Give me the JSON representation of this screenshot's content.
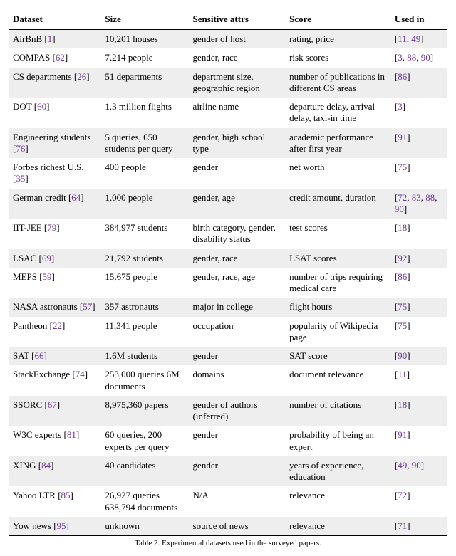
{
  "columns": [
    "Dataset",
    "Size",
    "Sensitive attrs",
    "Score",
    "Used in"
  ],
  "caption": "Table 2.   Experimental datasets used in the surveyed papers.",
  "ref_color": "#7030a0",
  "rows": [
    {
      "name": "AirBnB",
      "name_ref": "1",
      "size": "10,201 houses",
      "attrs": "gender of host",
      "score": "rating, price",
      "used": "11, 49"
    },
    {
      "name": "COMPAS",
      "name_ref": "62",
      "size": "7,214 people",
      "attrs": "gender, race",
      "score": "risk scores",
      "used": "3, 88, 90"
    },
    {
      "name": "CS departments",
      "name_ref": "26",
      "size": "51 departments",
      "attrs": "department size, geographic region",
      "score": "number of publications in different CS areas",
      "used": "86"
    },
    {
      "name": "DOT",
      "name_ref": "60",
      "size": "1.3 million flights",
      "attrs": "airline name",
      "score": "departure delay, arrival delay,\ntaxi-in time",
      "used": "3"
    },
    {
      "name": "Engineering students",
      "name_ref": "76",
      "size": "5 queries, 650 students per query",
      "attrs": "gender,\nhigh school type",
      "score": "academic performance after first year",
      "used": "91"
    },
    {
      "name": "Forbes richest U.S.",
      "name_ref": "35",
      "size": "400 people",
      "attrs": "gender",
      "score": "net worth",
      "used": "75"
    },
    {
      "name": "German credit",
      "name_ref": "64",
      "size": "1,000 people",
      "attrs": "gender, age",
      "score": "credit amount, duration",
      "used": "72, 83, 88, 90"
    },
    {
      "name": "IIT-JEE",
      "name_ref": "79",
      "size": "384,977 students",
      "attrs": "birth category, gender, disability status",
      "score": "test scores",
      "used": "18"
    },
    {
      "name": "LSAC",
      "name_ref": "69",
      "size": "21,792 students",
      "attrs": "gender, race",
      "score": "LSAT scores",
      "used": "92"
    },
    {
      "name": "MEPS",
      "name_ref": "59",
      "size": "15,675 people",
      "attrs": "gender, race, age",
      "score": "number of trips requiring medical care",
      "used": "86"
    },
    {
      "name": "NASA astronauts",
      "name_ref": "57",
      "size": "357 astronauts",
      "attrs": "major in college",
      "score": "flight hours",
      "used": "75"
    },
    {
      "name": "Pantheon",
      "name_ref": "22",
      "size": "11,341 people",
      "attrs": "occupation",
      "score": "popularity of Wikipedia page",
      "used": "75"
    },
    {
      "name": "SAT",
      "name_ref": "66",
      "size": "1.6M students",
      "attrs": "gender",
      "score": "SAT score",
      "used": "90"
    },
    {
      "name": "StackExchange",
      "name_ref": "74",
      "size": "253,000 queries\n6M documents",
      "attrs": "domains",
      "score": "document relevance",
      "used": "11"
    },
    {
      "name": "SSORC",
      "name_ref": "67",
      "size": "8,975,360 papers",
      "attrs": "gender of authors (inferred)",
      "score": "number of citations",
      "used": "18"
    },
    {
      "name": "W3C experts",
      "name_ref": "81",
      "size": "60 queries, 200 experts per query",
      "attrs": "gender",
      "score": "probability of being an expert",
      "used": "91"
    },
    {
      "name": "XING",
      "name_ref": "84",
      "size": "40 candidates",
      "attrs": "gender",
      "score": "years of experience, education",
      "used": "49, 90"
    },
    {
      "name": "Yahoo LTR",
      "name_ref": "85",
      "size": "26,927 queries\n638,794 documents",
      "attrs": "N/A",
      "score": "relevance",
      "used": "72"
    },
    {
      "name": "Yow news",
      "name_ref": "95",
      "size": "unknown",
      "attrs": "source of news",
      "score": "relevance",
      "used": "71"
    }
  ]
}
